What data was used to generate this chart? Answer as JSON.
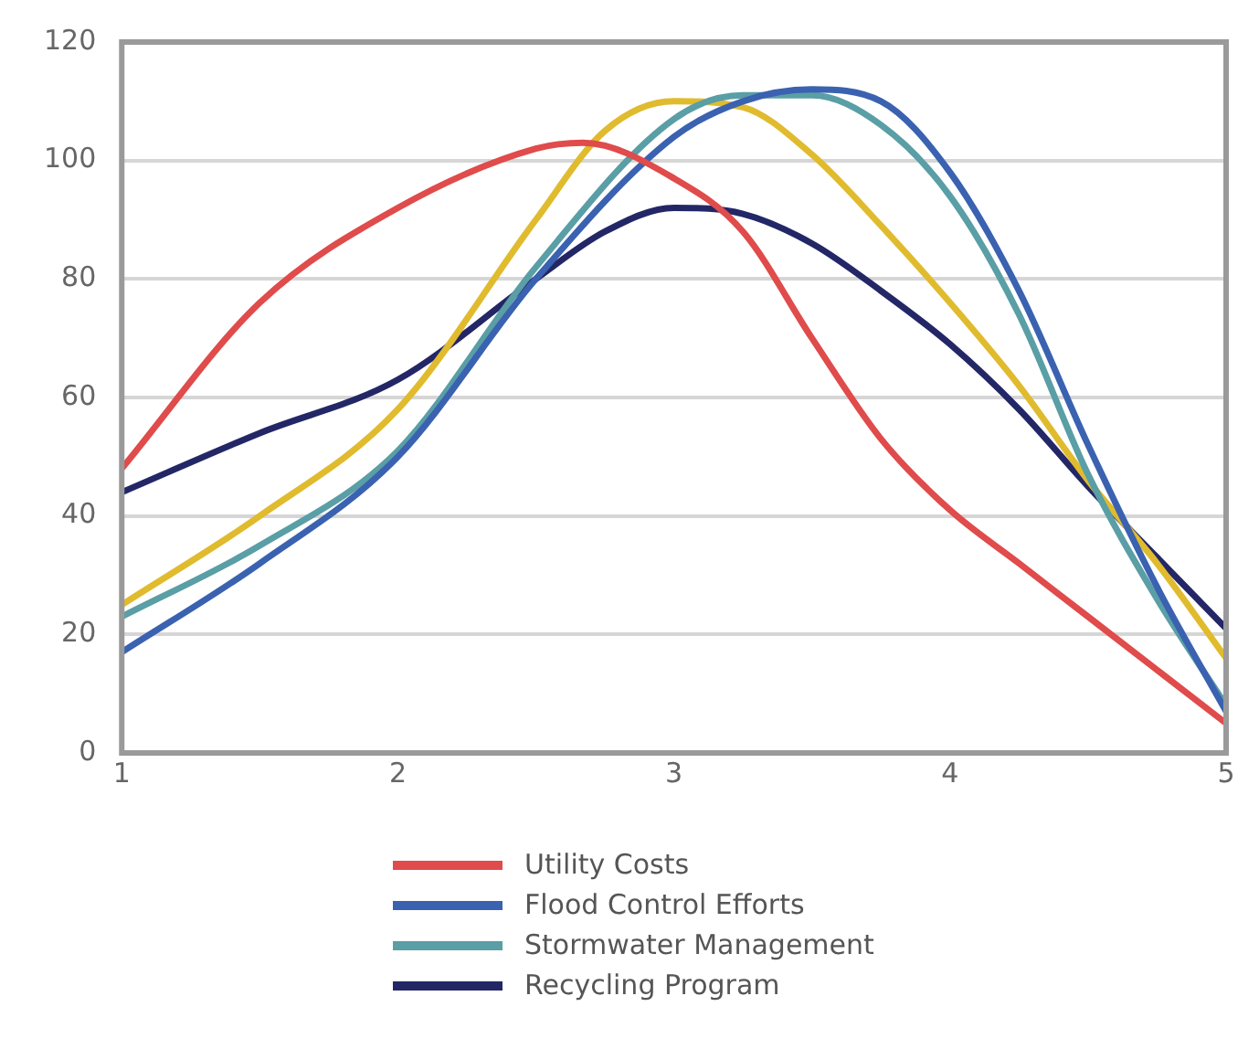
{
  "chart_data": {
    "type": "line",
    "xlim": [
      1,
      5
    ],
    "xticks": [
      1,
      2,
      3,
      4,
      5
    ],
    "ylim": [
      0,
      120
    ],
    "yticks": [
      0,
      20,
      40,
      60,
      80,
      100,
      120
    ],
    "grid": "y",
    "legend": "bottom",
    "marker": "none",
    "line_style": "solid",
    "series": [
      {
        "name": "Utility Costs",
        "color": "#e04b4b",
        "x": [
          1,
          1.5,
          2,
          2.5,
          2.67,
          3,
          3.25,
          3.5,
          3.75,
          4,
          4.25,
          4.5,
          4.75,
          5
        ],
        "values": [
          48,
          76,
          92,
          102,
          103,
          97,
          88,
          70,
          53,
          41,
          32,
          23,
          14,
          5
        ]
      },
      {
        "name": "Flood Control Efforts",
        "color": "#3a62b0",
        "x": [
          1,
          1.5,
          2,
          2.5,
          3,
          3.25,
          3.5,
          3.75,
          4,
          4.25,
          4.5,
          4.75,
          5
        ],
        "values": [
          17,
          32,
          50,
          80,
          104,
          110,
          112,
          110,
          98,
          78,
          52,
          28,
          7
        ]
      },
      {
        "name": "Stormwater Management",
        "color": "#5a9ea6",
        "x": [
          1,
          1.5,
          2,
          2.5,
          3,
          3.25,
          3.5,
          3.75,
          4,
          4.25,
          4.5,
          4.75,
          5
        ],
        "values": [
          23,
          35,
          51,
          82,
          107,
          111,
          111,
          106,
          94,
          74,
          47,
          26,
          8
        ]
      },
      {
        "color": "#e0bb2e",
        "x": [
          1,
          1.5,
          2,
          2.5,
          2.75,
          3,
          3.25,
          3.5,
          3.75,
          4,
          4.25,
          4.5,
          4.75,
          5
        ],
        "values": [
          25,
          40,
          58,
          90,
          105,
          110,
          109,
          101,
          89,
          76,
          62,
          46,
          32,
          16
        ]
      },
      {
        "name": "Recycling Program",
        "color": "#232766",
        "x": [
          1,
          1.5,
          2,
          2.5,
          2.75,
          3,
          3.25,
          3.5,
          3.75,
          4,
          4.25,
          4.5,
          4.75,
          5
        ],
        "values": [
          44,
          54,
          63,
          80,
          88,
          92,
          91,
          86,
          78,
          69,
          58,
          45,
          33,
          21
        ]
      }
    ]
  }
}
